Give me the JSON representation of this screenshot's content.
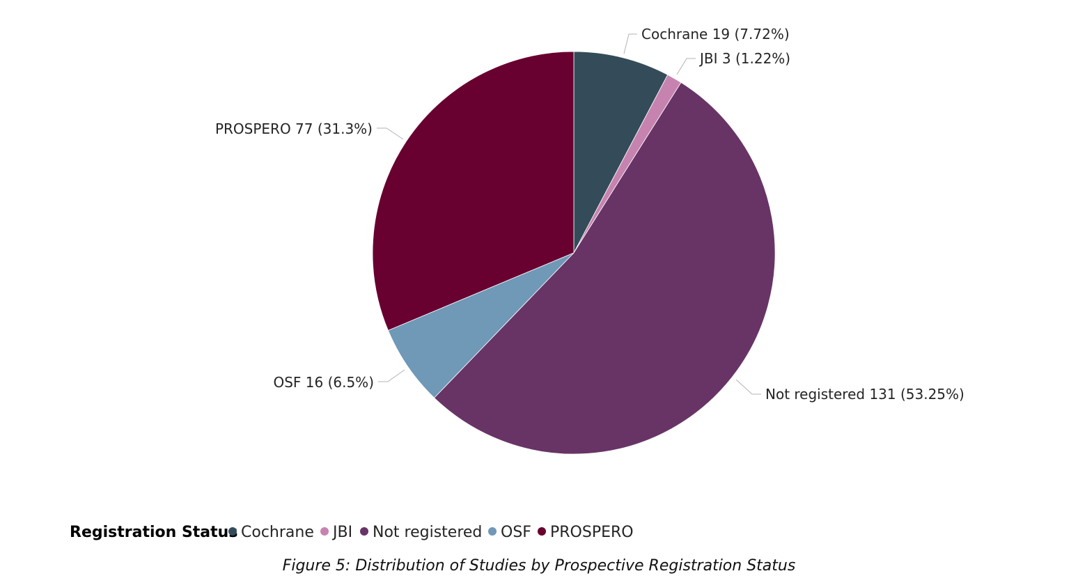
{
  "chart_data": {
    "type": "pie",
    "slices": [
      {
        "label": "Cochrane",
        "value": 19,
        "percent": "7.72%",
        "color": "#344C5A"
      },
      {
        "label": "JBI",
        "value": 3,
        "percent": "1.22%",
        "color": "#C783B0"
      },
      {
        "label": "Not registered",
        "value": 131,
        "percent": "53.25%",
        "color": "#683466"
      },
      {
        "label": "OSF",
        "value": 16,
        "percent": "6.5%",
        "color": "#7098B7"
      },
      {
        "label": "PROSPERO",
        "value": 77,
        "percent": "31.3%",
        "color": "#680030"
      }
    ],
    "data_labels": [
      "Cochrane 19 (7.72%)",
      "JBI 3 (1.22%)",
      "Not registered 131 (53.25%)",
      "OSF 16 (6.5%)",
      "PROSPERO 77 (31.3%)"
    ],
    "legend_title": "Registration Status",
    "legend_placement": "bottom-left"
  },
  "caption": "Figure 5: Distribution of Studies by Prospective Registration Status"
}
